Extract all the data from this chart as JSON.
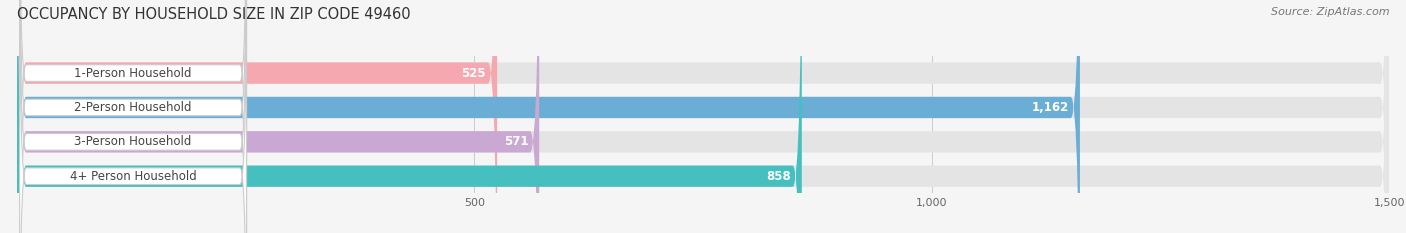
{
  "title": "OCCUPANCY BY HOUSEHOLD SIZE IN ZIP CODE 49460",
  "source": "Source: ZipAtlas.com",
  "categories": [
    "1-Person Household",
    "2-Person Household",
    "3-Person Household",
    "4+ Person Household"
  ],
  "values": [
    525,
    1162,
    571,
    858
  ],
  "bar_colors": [
    "#f5a8b0",
    "#6aadd5",
    "#c9a8d4",
    "#45bfc0"
  ],
  "label_bg_color": "#ffffff",
  "background_color": "#f5f5f5",
  "bar_bg_color": "#e4e4e4",
  "xlim": [
    0,
    1500
  ],
  "xticks": [
    500,
    1000,
    1500
  ],
  "bar_height": 0.62,
  "title_fontsize": 10.5,
  "source_fontsize": 8,
  "label_fontsize": 8.5,
  "value_fontsize": 8.5,
  "value_color_inside": "#ffffff",
  "value_color_outside": "#555555"
}
